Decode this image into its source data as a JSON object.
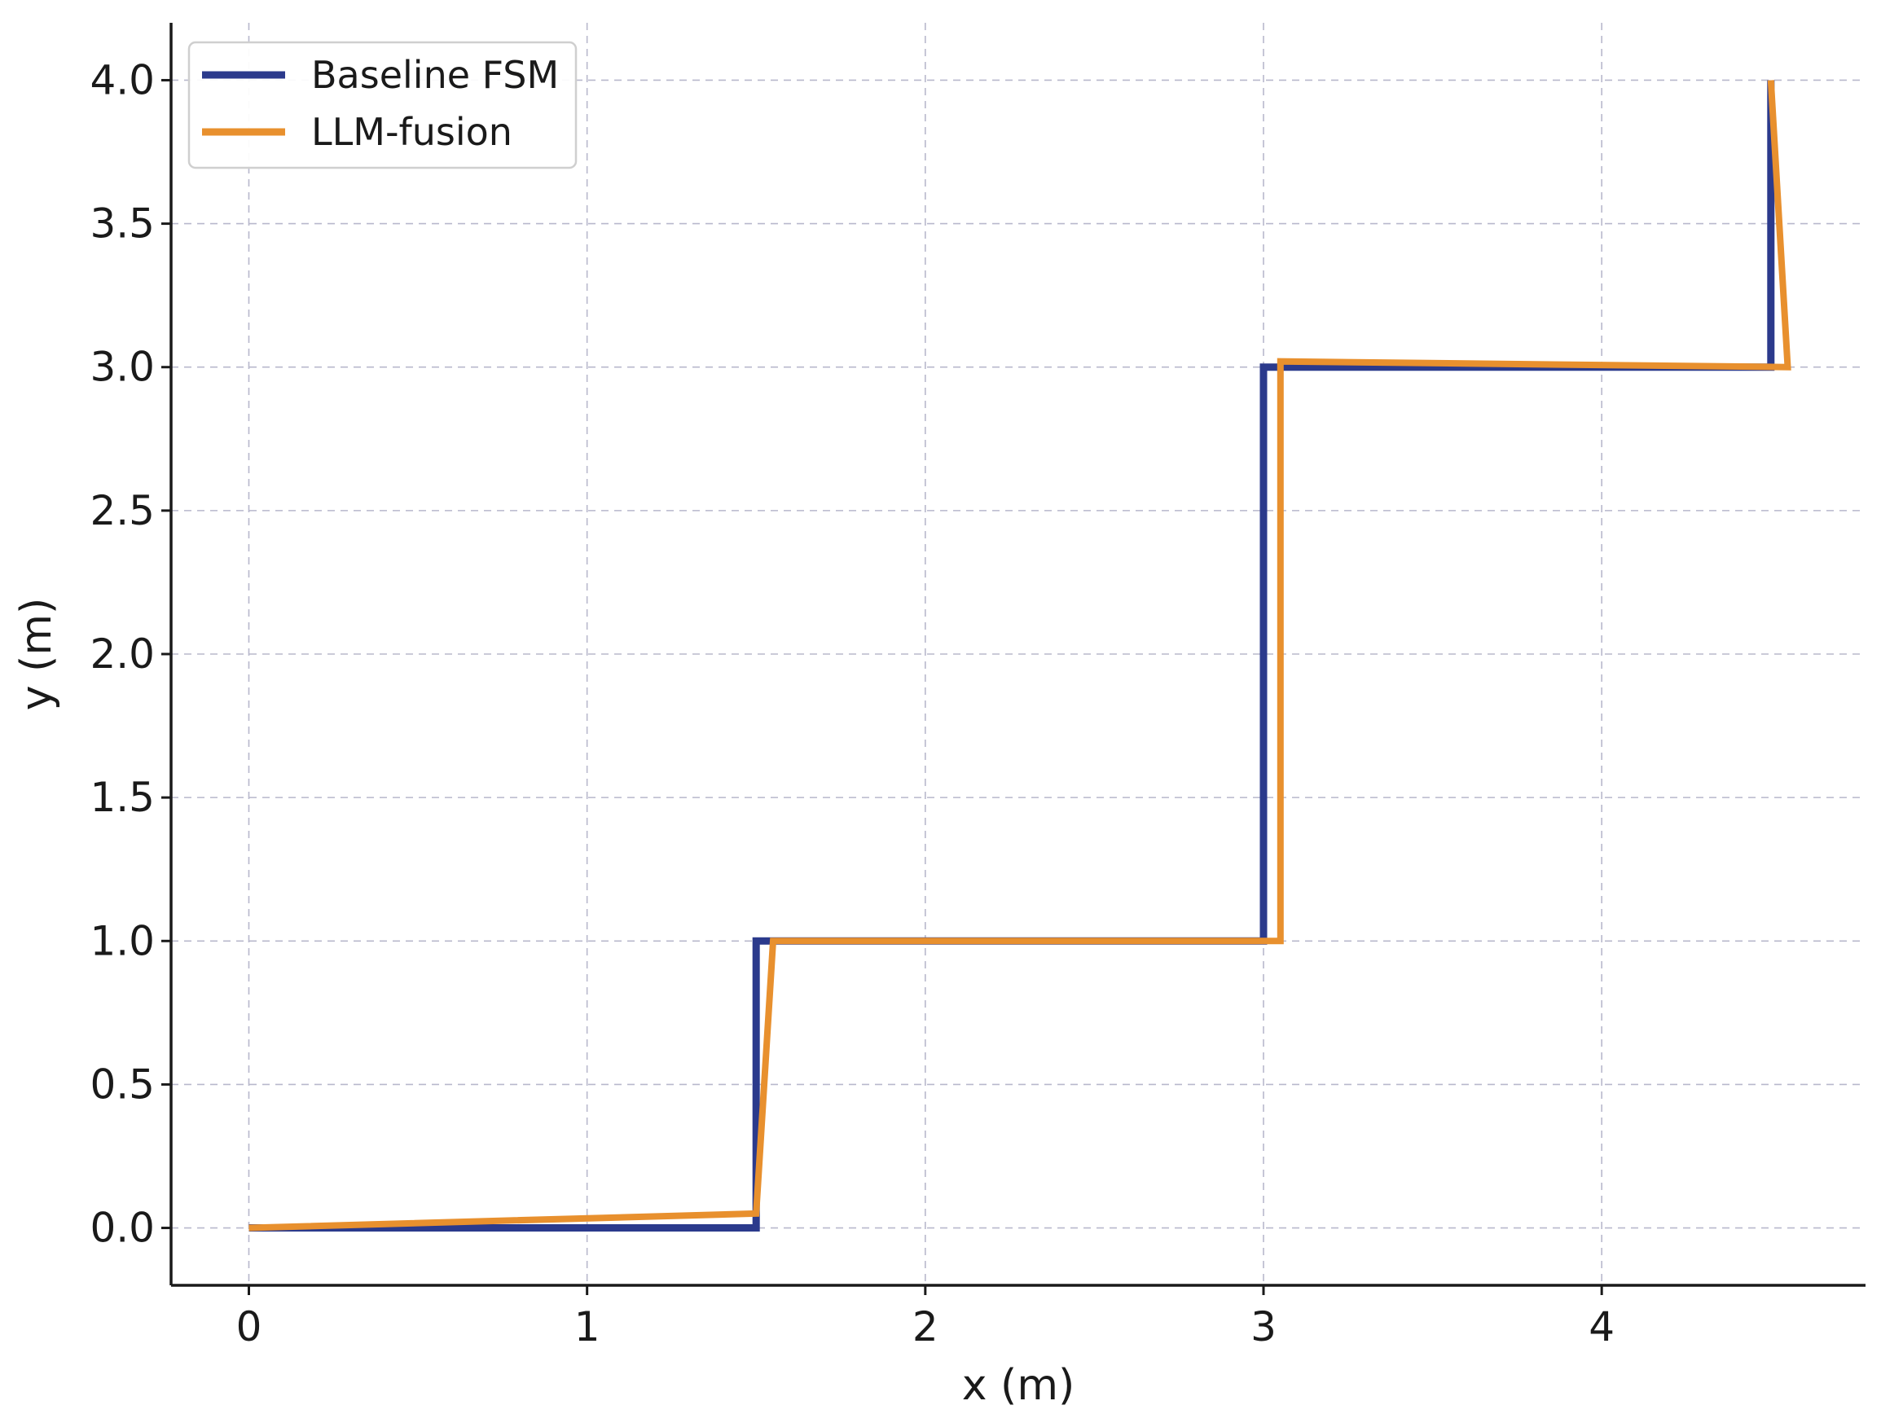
{
  "chart_data": {
    "type": "line",
    "title": "",
    "xlabel": "x (m)",
    "ylabel": "y (m)",
    "xlim": [
      -0.23,
      4.78
    ],
    "ylim": [
      -0.2,
      4.2
    ],
    "xticks": [
      0,
      1,
      2,
      3,
      4
    ],
    "yticks": [
      0.0,
      0.5,
      1.0,
      1.5,
      2.0,
      2.5,
      3.0,
      3.5,
      4.0
    ],
    "xtick_labels": [
      "0",
      "1",
      "2",
      "3",
      "4"
    ],
    "ytick_labels": [
      "0.0",
      "0.5",
      "1.0",
      "1.5",
      "2.0",
      "2.5",
      "3.0",
      "3.5",
      "4.0"
    ],
    "grid": true,
    "legend_position": "top-left",
    "series": [
      {
        "name": "Baseline FSM",
        "color": "#2b3a8c",
        "x": [
          0,
          1.5,
          1.5,
          3.0,
          3.0,
          4.5,
          4.5
        ],
        "y": [
          0,
          0,
          1.0,
          1.0,
          3.0,
          3.0,
          4.0
        ]
      },
      {
        "name": "LLM-fusion",
        "color": "#e8902e",
        "x": [
          0,
          1.5,
          1.55,
          3.05,
          3.05,
          4.55,
          4.5
        ],
        "y": [
          0,
          0.05,
          1.0,
          1.0,
          3.02,
          3.0,
          4.0
        ]
      }
    ]
  }
}
